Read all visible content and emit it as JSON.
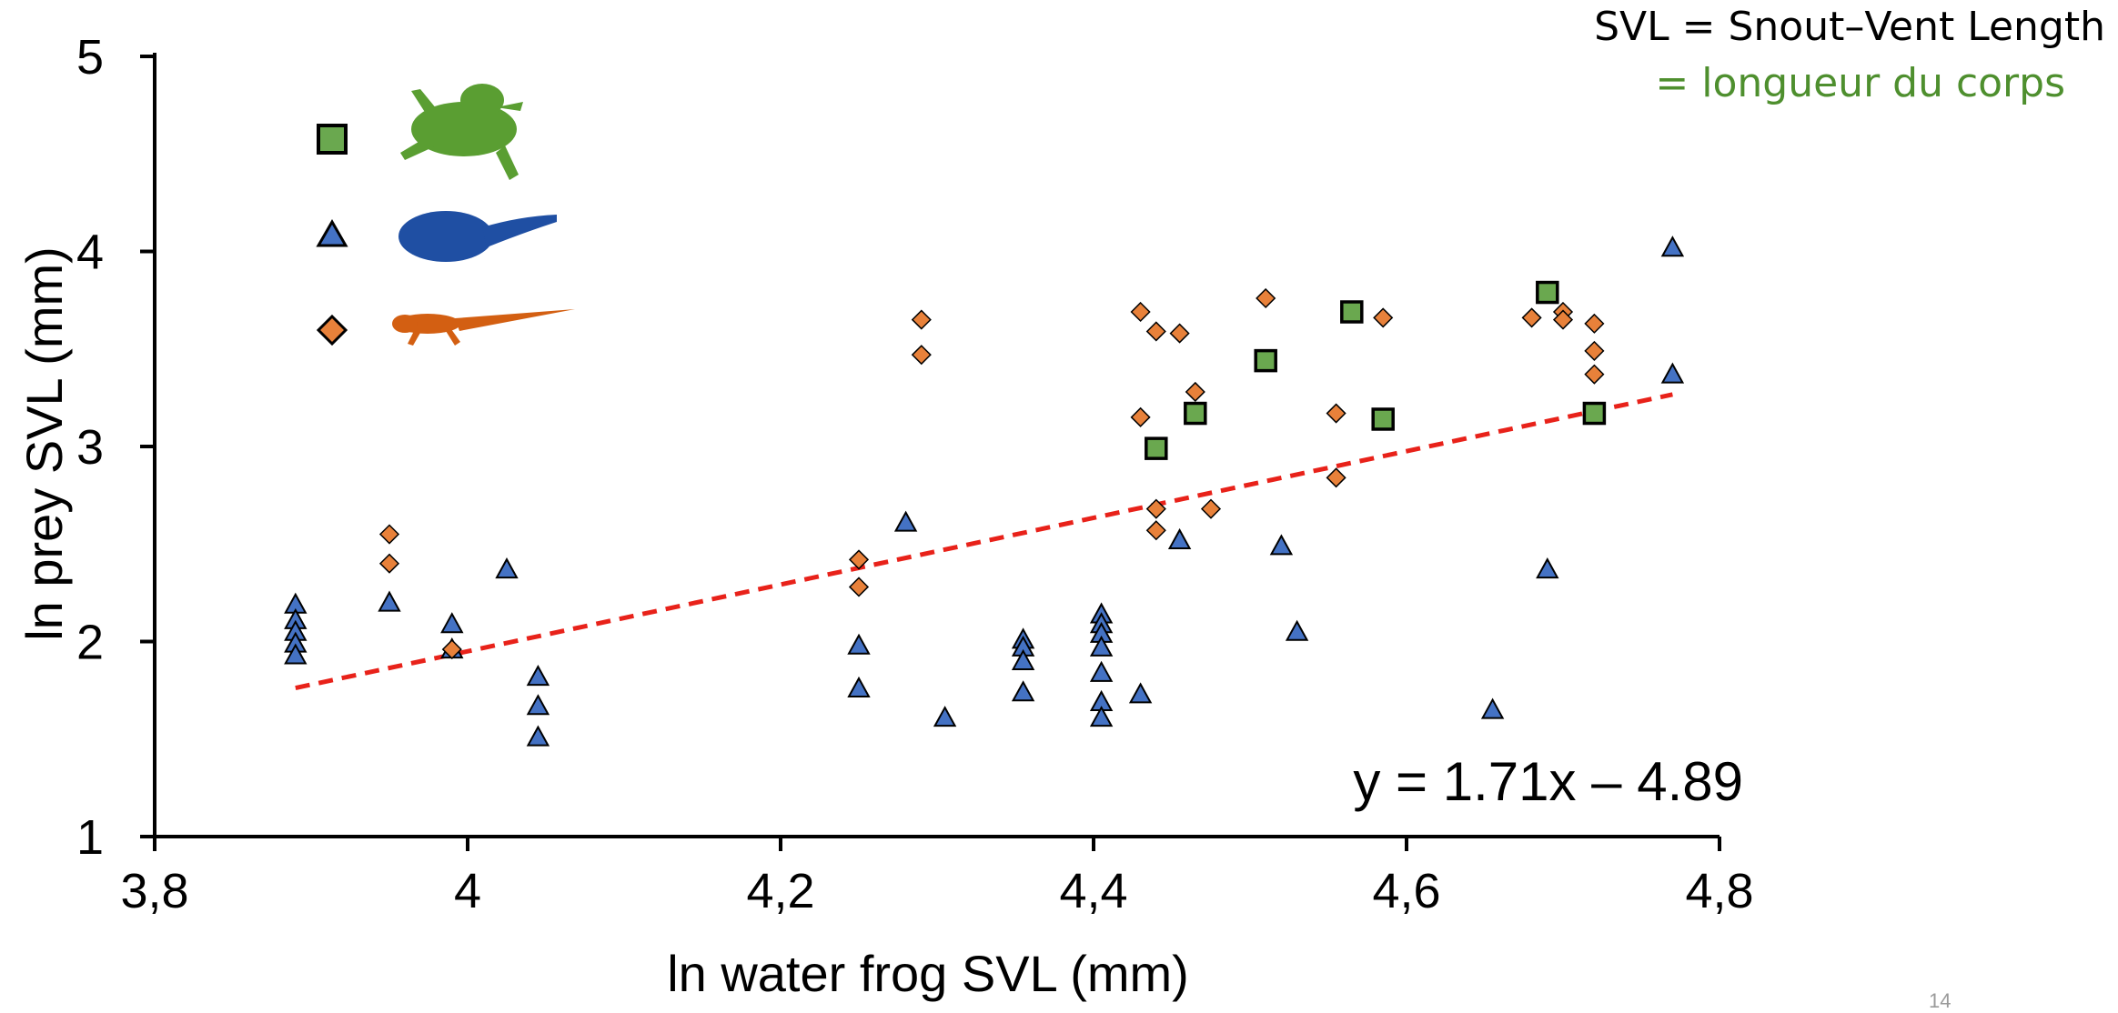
{
  "notes": {
    "line1": "SVL = Snout–Vent Length",
    "line2": "= longueur du corps"
  },
  "page_number": "14",
  "colors": {
    "frog": "#6aa84f",
    "tadpole": "#4472c4",
    "newt": "#e8813a",
    "trend": "#e8221a",
    "note_green": "#4e8f2e"
  },
  "legend": {
    "items": [
      {
        "marker": "square",
        "icon": "frog-silhouette-icon",
        "color": "#6aa84f"
      },
      {
        "marker": "triangle",
        "icon": "tadpole-silhouette-icon",
        "color": "#4472c4"
      },
      {
        "marker": "diamond",
        "icon": "newt-silhouette-icon",
        "color": "#e8813a"
      }
    ]
  },
  "chart_data": {
    "type": "scatter",
    "title": "",
    "xlabel": "ln water frog SVL (mm)",
    "ylabel": "ln prey SVL (mm)",
    "xlim": [
      3.8,
      4.8
    ],
    "ylim": [
      1,
      5
    ],
    "x_ticks": [
      "3,8",
      "4",
      "4,2",
      "4,4",
      "4,6",
      "4,8"
    ],
    "x_tick_values": [
      3.8,
      4.0,
      4.2,
      4.4,
      4.6,
      4.8
    ],
    "y_ticks": [
      "1",
      "2",
      "3",
      "4",
      "5"
    ],
    "y_tick_values": [
      1,
      2,
      3,
      4,
      5
    ],
    "grid": false,
    "trendline": {
      "slope": 1.71,
      "intercept": -4.89,
      "x_range": [
        3.89,
        4.77
      ],
      "label": "y = 1.71x – 4.89"
    },
    "series": [
      {
        "marker": "square",
        "color": "#6aa84f",
        "points": [
          [
            4.44,
            2.99
          ],
          [
            4.465,
            3.17
          ],
          [
            4.51,
            3.44
          ],
          [
            4.565,
            3.69
          ],
          [
            4.585,
            3.14
          ],
          [
            4.69,
            3.79
          ],
          [
            4.72,
            3.17
          ]
        ]
      },
      {
        "marker": "triangle",
        "color": "#4472c4",
        "points": [
          [
            3.89,
            2.19
          ],
          [
            3.89,
            2.11
          ],
          [
            3.89,
            2.05
          ],
          [
            3.89,
            1.99
          ],
          [
            3.89,
            1.93
          ],
          [
            3.95,
            2.2
          ],
          [
            3.99,
            2.09
          ],
          [
            3.99,
            1.96
          ],
          [
            4.025,
            2.37
          ],
          [
            4.045,
            1.82
          ],
          [
            4.045,
            1.67
          ],
          [
            4.045,
            1.51
          ],
          [
            4.25,
            1.98
          ],
          [
            4.25,
            1.76
          ],
          [
            4.28,
            2.61
          ],
          [
            4.305,
            1.61
          ],
          [
            4.355,
            2.01
          ],
          [
            4.355,
            1.97
          ],
          [
            4.355,
            1.9
          ],
          [
            4.355,
            1.74
          ],
          [
            4.405,
            2.14
          ],
          [
            4.405,
            2.09
          ],
          [
            4.405,
            2.04
          ],
          [
            4.405,
            1.97
          ],
          [
            4.405,
            1.84
          ],
          [
            4.405,
            1.69
          ],
          [
            4.405,
            1.61
          ],
          [
            4.43,
            1.73
          ],
          [
            4.455,
            2.52
          ],
          [
            4.52,
            2.49
          ],
          [
            4.53,
            2.05
          ],
          [
            4.655,
            1.65
          ],
          [
            4.69,
            2.37
          ],
          [
            4.77,
            4.02
          ],
          [
            4.77,
            3.37
          ]
        ]
      },
      {
        "marker": "diamond",
        "color": "#e8813a",
        "points": [
          [
            3.95,
            2.55
          ],
          [
            3.95,
            2.4
          ],
          [
            3.99,
            1.96
          ],
          [
            4.25,
            2.42
          ],
          [
            4.25,
            2.28
          ],
          [
            4.29,
            3.65
          ],
          [
            4.29,
            3.47
          ],
          [
            4.43,
            3.69
          ],
          [
            4.43,
            3.15
          ],
          [
            4.44,
            3.59
          ],
          [
            4.44,
            2.68
          ],
          [
            4.44,
            2.57
          ],
          [
            4.455,
            3.58
          ],
          [
            4.465,
            3.28
          ],
          [
            4.475,
            2.68
          ],
          [
            4.51,
            3.76
          ],
          [
            4.555,
            3.17
          ],
          [
            4.555,
            2.84
          ],
          [
            4.585,
            3.66
          ],
          [
            4.68,
            3.66
          ],
          [
            4.7,
            3.69
          ],
          [
            4.7,
            3.65
          ],
          [
            4.72,
            3.63
          ],
          [
            4.72,
            3.49
          ],
          [
            4.72,
            3.37
          ]
        ]
      }
    ]
  }
}
